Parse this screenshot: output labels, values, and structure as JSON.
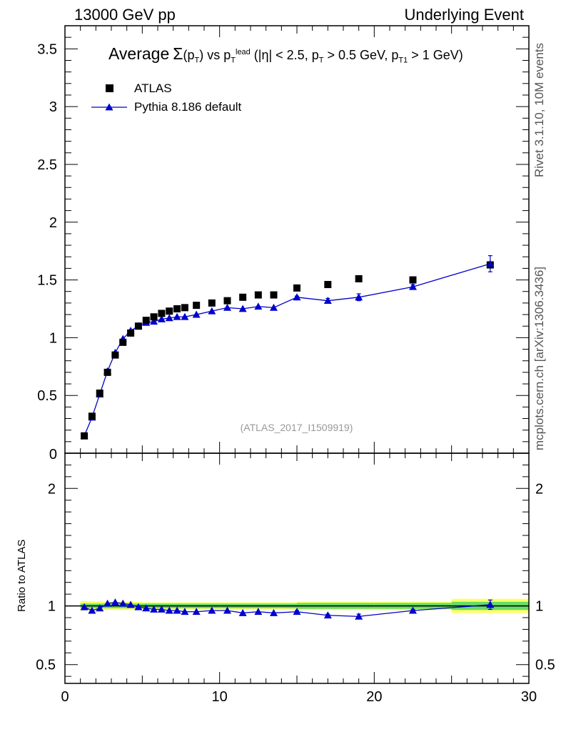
{
  "header": {
    "left": "13000 GeV pp",
    "right": "Underlying Event"
  },
  "side": {
    "top": "Rivet 3.1.10,  10M events",
    "bottom": "mcplots.cern.ch [arXiv:1306.3436]"
  },
  "title": {
    "prefix": "Average",
    "sigma": "Σ",
    "pt_open": "(p",
    "pt_sub": "T",
    "pt_close": ")",
    "vs": " vs p",
    "lead_sub": "T",
    "lead_sup": "lead",
    "cuts1": " (|η| < 2.5, p",
    "cuts_sub1": "T",
    "cuts2": " > 0.5 GeV, p",
    "cuts_sub2": "T1",
    "cuts3": " > 1 GeV)"
  },
  "watermark": "(ATLAS_2017_I1509919)",
  "ratio_ylabel": "Ratio to ATLAS",
  "legend": {
    "data_label": "ATLAS",
    "mc_label": "Pythia 8.186 default"
  },
  "colors": {
    "data": "#000000",
    "mc": "#0000cc",
    "band_inner": "#66dd66",
    "band_outer": "#ffff66"
  },
  "chart_data": [
    {
      "type": "scatter",
      "panel": "main",
      "xlim": [
        0,
        30
      ],
      "ylim": [
        0,
        3.7
      ],
      "yticks": [
        0.5,
        1,
        1.5,
        2,
        2.5,
        3,
        3.5
      ],
      "ytick_labels": [
        "0.5",
        "1",
        "1.5",
        "2",
        "2.5",
        "3",
        "3.5"
      ],
      "bottom_tick_label": "0",
      "series": [
        {
          "name": "ATLAS",
          "marker": "square",
          "x": [
            1.25,
            1.75,
            2.25,
            2.75,
            3.25,
            3.75,
            4.25,
            4.75,
            5.25,
            5.75,
            6.25,
            6.75,
            7.25,
            7.75,
            8.5,
            9.5,
            10.5,
            11.5,
            12.5,
            13.5,
            15.0,
            17.0,
            19.0,
            22.5,
            27.5
          ],
          "y": [
            0.15,
            0.32,
            0.52,
            0.7,
            0.85,
            0.96,
            1.04,
            1.1,
            1.15,
            1.18,
            1.21,
            1.23,
            1.25,
            1.26,
            1.28,
            1.3,
            1.32,
            1.35,
            1.37,
            1.37,
            1.43,
            1.46,
            1.51,
            1.5,
            1.63
          ]
        },
        {
          "name": "Pythia 8.186 default",
          "marker": "triangle",
          "x": [
            1.25,
            1.75,
            2.25,
            2.75,
            3.25,
            3.75,
            4.25,
            4.75,
            5.25,
            5.75,
            6.25,
            6.75,
            7.25,
            7.75,
            8.5,
            9.5,
            10.5,
            11.5,
            12.5,
            13.5,
            15.0,
            17.0,
            19.0,
            22.5,
            27.5
          ],
          "y": [
            0.15,
            0.31,
            0.51,
            0.71,
            0.87,
            0.99,
            1.06,
            1.1,
            1.13,
            1.14,
            1.16,
            1.17,
            1.18,
            1.18,
            1.2,
            1.23,
            1.26,
            1.25,
            1.27,
            1.26,
            1.35,
            1.32,
            1.35,
            1.44,
            1.64
          ],
          "yerr": [
            0,
            0,
            0,
            0,
            0,
            0,
            0,
            0,
            0,
            0,
            0,
            0,
            0,
            0,
            0,
            0,
            0,
            0,
            0,
            0,
            0.01,
            0.02,
            0.03,
            0.02,
            0.07
          ]
        }
      ]
    },
    {
      "type": "line",
      "panel": "ratio",
      "xlabel": "",
      "ylabel": "Ratio to ATLAS",
      "xlim": [
        0,
        30
      ],
      "ylim": [
        0.34,
        2.3
      ],
      "xticks": [
        0,
        10,
        20,
        30
      ],
      "xtick_labels": [
        "0",
        "10",
        "20",
        "30"
      ],
      "yticks": [
        0.5,
        1,
        2
      ],
      "ytick_labels": [
        "0.5",
        "1",
        "2"
      ],
      "series": [
        {
          "name": "Pythia 8.186 default",
          "x": [
            1.25,
            1.75,
            2.25,
            2.75,
            3.25,
            3.75,
            4.25,
            4.75,
            5.25,
            5.75,
            6.25,
            6.75,
            7.25,
            7.75,
            8.5,
            9.5,
            10.5,
            11.5,
            12.5,
            13.5,
            15.0,
            17.0,
            19.0,
            22.5,
            27.5
          ],
          "y": [
            0.99,
            0.96,
            0.98,
            1.02,
            1.03,
            1.02,
            1.01,
            0.99,
            0.98,
            0.97,
            0.97,
            0.96,
            0.96,
            0.95,
            0.95,
            0.96,
            0.96,
            0.94,
            0.95,
            0.94,
            0.95,
            0.92,
            0.91,
            0.96,
            1.01
          ],
          "yerr": [
            0,
            0,
            0,
            0,
            0,
            0,
            0,
            0,
            0,
            0,
            0,
            0,
            0,
            0,
            0,
            0,
            0,
            0,
            0,
            0,
            0.01,
            0.01,
            0.02,
            0.01,
            0.04
          ]
        }
      ],
      "data_band": {
        "x_edges": [
          1,
          2.5,
          5,
          10,
          15,
          20,
          25,
          30
        ],
        "inner": [
          0.02,
          0.02,
          0.02,
          0.02,
          0.025,
          0.025,
          0.035
        ],
        "outer": [
          0.04,
          0.035,
          0.03,
          0.03,
          0.035,
          0.035,
          0.06
        ]
      }
    }
  ]
}
